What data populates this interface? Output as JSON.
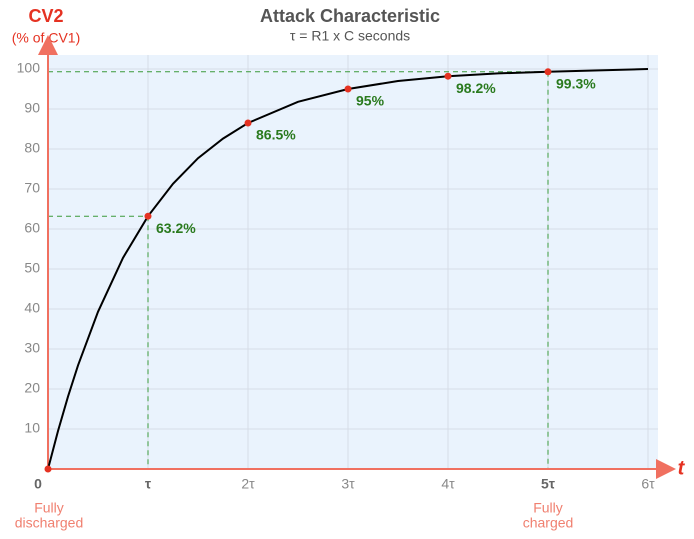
{
  "chart_data": {
    "type": "line",
    "title": "Attack Characteristic",
    "subtitle": "τ = R1 x C seconds",
    "y_label": [
      "CV2",
      "(% of CV1)"
    ],
    "x_label": "t",
    "xlim": [
      0,
      6.1
    ],
    "ylim": [
      0,
      103.5
    ],
    "xticks": [
      0,
      {
        "value": 1,
        "label": "τ"
      },
      {
        "value": 2,
        "label": "2τ"
      },
      {
        "value": 3,
        "label": "3τ"
      },
      {
        "value": 4,
        "label": "4τ"
      },
      {
        "value": 5,
        "label": "5τ"
      },
      {
        "value": 6,
        "label": "6τ"
      }
    ],
    "yticks": [
      10,
      20,
      30,
      40,
      50,
      60,
      70,
      80,
      90,
      100
    ],
    "grid": true,
    "series": [
      {
        "name": "curve",
        "color": "#000000",
        "x": [
          0,
          0.1,
          0.2,
          0.3,
          0.5,
          0.75,
          1,
          1.25,
          1.5,
          1.75,
          2,
          2.5,
          3,
          3.5,
          4,
          4.5,
          5,
          6
        ],
        "values": [
          0,
          9.5,
          18.1,
          25.9,
          39.3,
          52.8,
          63.2,
          71.3,
          77.7,
          82.6,
          86.5,
          91.8,
          95,
          97,
          98.2,
          98.9,
          99.3,
          100
        ]
      },
      {
        "name": "points",
        "color": "#e53222",
        "x": [
          0,
          1,
          2,
          3,
          4,
          5
        ],
        "values": [
          0,
          63.2,
          86.5,
          95,
          98.2,
          99.3
        ],
        "value_labels": [
          null,
          "63.2%",
          "86.5%",
          "95%",
          "98.2%",
          "99.3%"
        ]
      }
    ],
    "annotations": [
      {
        "x": 0,
        "lines": [
          "Fully",
          "discharged"
        ]
      },
      {
        "x": 5,
        "lines": [
          "Fully",
          "charged"
        ]
      }
    ]
  }
}
